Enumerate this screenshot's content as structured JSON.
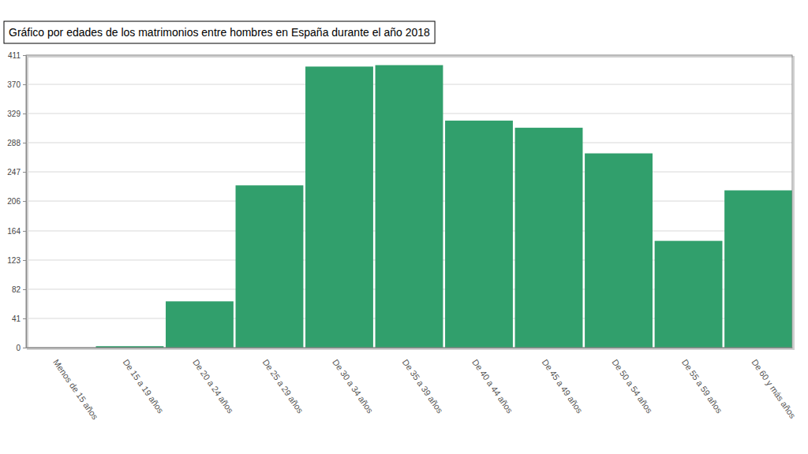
{
  "chart_data": {
    "type": "bar",
    "title": "Gráfico por edades de los matrimonios entre hombres en España durante el año 2018",
    "categories": [
      "Menos de 15 años",
      "De 15 a 19 años",
      "De 20 a 24 años",
      "De 25 a 29 años",
      "De 30 a 34 años",
      "De 35 a 39 años",
      "De 40 a 44 años",
      "De 45 a 49 años",
      "De 50 a 54 años",
      "De 55 a 59 años",
      "De 60 y más años"
    ],
    "values": [
      0,
      2,
      65,
      228,
      395,
      397,
      319,
      309,
      273,
      150,
      221
    ],
    "color": "#319f6c",
    "ylim": [
      0,
      411
    ],
    "yticks": [
      0,
      41,
      82,
      123,
      164,
      206,
      247,
      288,
      329,
      370,
      411
    ],
    "grid": true
  }
}
